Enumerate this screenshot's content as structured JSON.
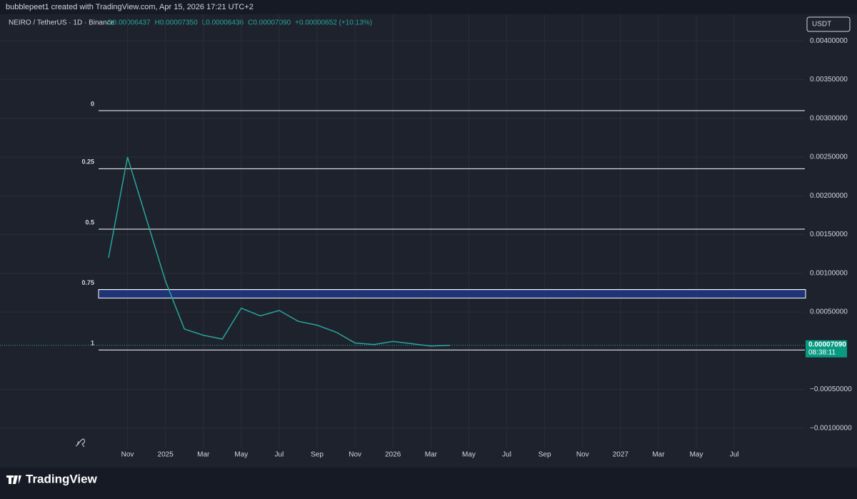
{
  "header": {
    "caption": "bubblepeet1 created with TradingView.com, Apr 15, 2026 17:21 UTC+2"
  },
  "footer": {
    "brand": "TradingView"
  },
  "chart_data": {
    "type": "line",
    "symbol": "NEIRO / TetherUS · 1D · Binance",
    "ohlc": [
      "O0.00006437",
      "H0.00007350",
      "L0.00006436",
      "C0.00007090",
      "+0.00000652 (+10.13%)"
    ],
    "currency": "USDT",
    "categories": [
      null,
      "Nov",
      null,
      "2025",
      null,
      "Mar",
      null,
      "May",
      null,
      "Jul",
      null,
      "Sep",
      null,
      "Nov",
      null,
      "2026",
      null,
      "Mar",
      null,
      "May",
      null,
      "Jul",
      null,
      "Sep",
      null,
      "Nov",
      null,
      "2027",
      null,
      "Mar",
      null,
      "May",
      null,
      "Jul",
      null
    ],
    "series": [
      {
        "name": "NEIRO",
        "color": "#26a69a",
        "values": [
          0.0012,
          0.0025,
          0.0017,
          0.0009,
          0.00028,
          0.0002,
          0.00015,
          0.00055,
          0.00045,
          0.00052,
          0.00038,
          0.00033,
          0.00024,
          0.0001,
          8e-05,
          0.00012,
          9e-05,
          6e-05,
          7e-05,
          null,
          null,
          null,
          null,
          null,
          null,
          null,
          null,
          null,
          null,
          null,
          null,
          null,
          null,
          null,
          null
        ]
      }
    ],
    "ylim": [
      -0.00126,
      0.00416
    ],
    "yticks": [
      {
        "value": 0.004,
        "label": "0.00400000"
      },
      {
        "value": 0.0035,
        "label": "0.00350000"
      },
      {
        "value": 0.003,
        "label": "0.00300000"
      },
      {
        "value": 0.0025,
        "label": "0.00250000"
      },
      {
        "value": 0.002,
        "label": "0.00200000"
      },
      {
        "value": 0.0015,
        "label": "0.00150000"
      },
      {
        "value": 0.001,
        "label": "0.00100000"
      },
      {
        "value": 0.0005,
        "label": "0.00050000"
      },
      {
        "value": -0.0005,
        "label": "−0.00050000"
      },
      {
        "value": -0.001,
        "label": "−0.00100000"
      }
    ],
    "grid": true,
    "fib_levels": [
      {
        "label": "0",
        "value": 0.0031
      },
      {
        "label": "0.25",
        "value": 0.00235
      },
      {
        "label": "0.5",
        "value": 0.00157
      },
      {
        "label": "0.75",
        "value": 0.00079
      },
      {
        "label": "1",
        "value": 1e-05
      }
    ],
    "zone": {
      "values": [
        0.00068,
        0.00079
      ],
      "color": "#1e3a8a"
    },
    "last_price": {
      "value": 7.09e-05,
      "label": "0.00007090",
      "countdown": "08:38:11"
    }
  }
}
